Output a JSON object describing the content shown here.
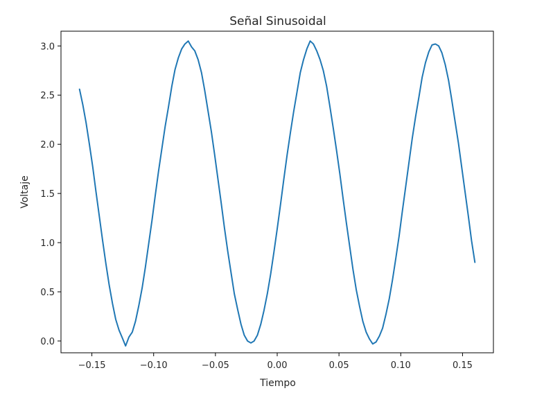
{
  "chart_data": {
    "type": "line",
    "title": "Señal Sinusoidal",
    "xlabel": "Tiempo",
    "ylabel": "Voltaje",
    "xlim": [
      -0.175,
      0.175
    ],
    "ylim": [
      -0.12,
      3.15
    ],
    "xticks": [
      -0.15,
      -0.1,
      -0.05,
      0.0,
      0.05,
      0.1,
      0.15
    ],
    "xtick_labels": [
      "−0.15",
      "−0.10",
      "−0.05",
      "0.00",
      "0.05",
      "0.10",
      "0.15"
    ],
    "yticks": [
      0.0,
      0.5,
      1.0,
      1.5,
      2.0,
      2.5,
      3.0
    ],
    "ytick_labels": [
      "0.0",
      "0.5",
      "1.0",
      "1.5",
      "2.0",
      "2.5",
      "3.0"
    ],
    "grid": false,
    "series": [
      {
        "color": "#1f77b4",
        "x": [
          -0.16,
          -0.1573,
          -0.1547,
          -0.152,
          -0.1493,
          -0.1467,
          -0.144,
          -0.1413,
          -0.1387,
          -0.136,
          -0.1333,
          -0.1307,
          -0.128,
          -0.1253,
          -0.1227,
          -0.12,
          -0.1173,
          -0.1147,
          -0.112,
          -0.1093,
          -0.1067,
          -0.104,
          -0.1013,
          -0.0987,
          -0.096,
          -0.0933,
          -0.0907,
          -0.088,
          -0.0853,
          -0.0827,
          -0.08,
          -0.0773,
          -0.0747,
          -0.072,
          -0.0693,
          -0.0667,
          -0.064,
          -0.0613,
          -0.0587,
          -0.056,
          -0.0533,
          -0.0507,
          -0.048,
          -0.0453,
          -0.0427,
          -0.04,
          -0.0373,
          -0.0347,
          -0.032,
          -0.0293,
          -0.0267,
          -0.024,
          -0.0213,
          -0.0187,
          -0.016,
          -0.0133,
          -0.0107,
          -0.008,
          -0.0053,
          -0.0027,
          0.0,
          0.0027,
          0.0053,
          0.008,
          0.0107,
          0.0133,
          0.016,
          0.0187,
          0.0213,
          0.024,
          0.0267,
          0.0293,
          0.032,
          0.0347,
          0.0373,
          0.04,
          0.0427,
          0.0453,
          0.048,
          0.0507,
          0.0533,
          0.056,
          0.0587,
          0.0613,
          0.064,
          0.0667,
          0.0693,
          0.072,
          0.0747,
          0.0773,
          0.08,
          0.0827,
          0.0853,
          0.088,
          0.0907,
          0.0933,
          0.096,
          0.0987,
          0.1013,
          0.104,
          0.1067,
          0.1093,
          0.112,
          0.1147,
          0.1173,
          0.12,
          0.1227,
          0.1253,
          0.128,
          0.1307,
          0.1333,
          0.136,
          0.1387,
          0.1413,
          0.144,
          0.1467,
          0.1493,
          0.152,
          0.1547,
          0.1573,
          0.16
        ],
        "y": [
          2.56,
          2.4,
          2.22,
          2.0,
          1.77,
          1.52,
          1.27,
          1.02,
          0.79,
          0.57,
          0.38,
          0.22,
          0.11,
          0.03,
          -0.05,
          0.04,
          0.09,
          0.2,
          0.36,
          0.54,
          0.75,
          0.99,
          1.23,
          1.48,
          1.73,
          1.96,
          2.18,
          2.38,
          2.59,
          2.76,
          2.88,
          2.97,
          3.02,
          3.05,
          2.99,
          2.95,
          2.86,
          2.73,
          2.55,
          2.34,
          2.13,
          1.9,
          1.65,
          1.4,
          1.15,
          0.91,
          0.69,
          0.48,
          0.32,
          0.17,
          0.06,
          0.0,
          -0.02,
          0.0,
          0.06,
          0.17,
          0.31,
          0.48,
          0.68,
          0.9,
          1.14,
          1.39,
          1.64,
          1.89,
          2.12,
          2.33,
          2.53,
          2.73,
          2.86,
          2.97,
          3.05,
          3.02,
          2.95,
          2.86,
          2.75,
          2.59,
          2.38,
          2.17,
          1.94,
          1.7,
          1.45,
          1.2,
          0.96,
          0.73,
          0.52,
          0.35,
          0.2,
          0.09,
          0.02,
          -0.03,
          -0.01,
          0.05,
          0.13,
          0.27,
          0.43,
          0.62,
          0.84,
          1.07,
          1.32,
          1.57,
          1.82,
          2.06,
          2.28,
          2.48,
          2.68,
          2.83,
          2.94,
          3.01,
          3.02,
          3.0,
          2.93,
          2.81,
          2.65,
          2.45,
          2.23,
          2.01,
          1.77,
          1.52,
          1.27,
          1.02,
          0.8
        ]
      }
    ]
  }
}
